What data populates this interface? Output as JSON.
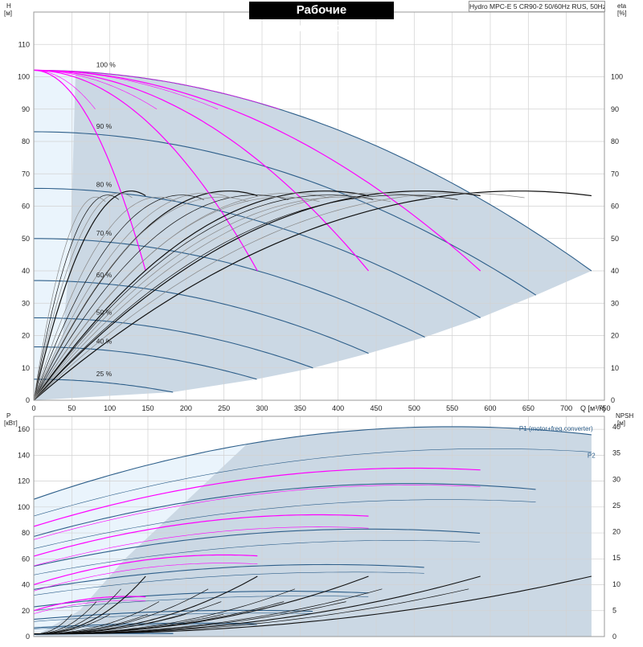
{
  "title": "Рабочие характеристики",
  "subtitle": "Hydro MPC-E 5 CR90-2 50/60Hz RUS, 50Hz",
  "colors": {
    "grid": "#d2d2d2",
    "frame": "#9a9a9a",
    "area_dark": "#cbd8e4",
    "area_light": "#eaf4fc",
    "curve_blue": "#2e5f8a",
    "curve_pink": "#ff00ff",
    "curve_black": "#111111",
    "curve_grey": "#888888"
  },
  "chart_data": [
    {
      "type": "line",
      "name": "head",
      "ylabel_left": [
        "H",
        "[м]"
      ],
      "ylabel_right": [
        "eta",
        "[%]"
      ],
      "xlabel": "Q [м³/ч]",
      "xlim": [
        0,
        750
      ],
      "ylim": [
        0,
        120
      ],
      "x_ticks": [
        0,
        50,
        100,
        150,
        200,
        250,
        300,
        350,
        400,
        450,
        500,
        550,
        600,
        650,
        700,
        750
      ],
      "y_ticks": [
        0,
        10,
        20,
        30,
        40,
        50,
        60,
        70,
        80,
        90,
        100,
        110
      ],
      "right_ticks": [
        0,
        10,
        20,
        30,
        40,
        50,
        60,
        70,
        80,
        90,
        100
      ],
      "speed_labels": [
        {
          "text": "100 %",
          "q": 42,
          "h": 102
        },
        {
          "text": "90 %",
          "q": 42,
          "h": 83
        },
        {
          "text": "80 %",
          "q": 42,
          "h": 65
        },
        {
          "text": "70 %",
          "q": 42,
          "h": 50
        },
        {
          "text": "60 %",
          "q": 42,
          "h": 37
        },
        {
          "text": "50 %",
          "q": 42,
          "h": 25.5
        },
        {
          "text": "40 %",
          "q": 42,
          "h": 16.5
        },
        {
          "text": "25 %",
          "q": 42,
          "h": 6.5
        }
      ],
      "qh_curves": [
        {
          "speed": "100 %",
          "h0": 102,
          "qmax": 733,
          "hend": 40
        },
        {
          "speed": "90 %",
          "h0": 83,
          "qmax": 660,
          "hend": 32.5
        },
        {
          "speed": "80 %",
          "h0": 65.5,
          "qmax": 587,
          "hend": 25.5
        },
        {
          "speed": "70 %",
          "h0": 50,
          "qmax": 514,
          "hend": 19.5
        },
        {
          "speed": "60 %",
          "h0": 37,
          "qmax": 440,
          "hend": 14.5
        },
        {
          "speed": "50 %",
          "h0": 25.5,
          "qmax": 367,
          "hend": 10
        },
        {
          "speed": "40 %",
          "h0": 16.5,
          "qmax": 293,
          "hend": 6.5
        },
        {
          "speed": "25 %",
          "h0": 6.5,
          "qmax": 183,
          "hend": 2.5
        }
      ],
      "pump_curves": [
        {
          "h0": 102,
          "qmax": 147,
          "hend": 40
        },
        {
          "h0": 102,
          "qmax": 294,
          "hend": 40
        },
        {
          "h0": 102,
          "qmax": 440,
          "hend": 40
        },
        {
          "h0": 102,
          "qmax": 587,
          "hend": 40
        }
      ],
      "efficiency_curves": [
        {
          "qmax": 147,
          "peak": 66
        },
        {
          "qmax": 294,
          "peak": 66
        },
        {
          "qmax": 440,
          "peak": 66
        },
        {
          "qmax": 587,
          "peak": 66
        },
        {
          "qmax": 733,
          "peak": 66
        }
      ]
    },
    {
      "type": "line",
      "name": "power",
      "ylabel_left": [
        "P",
        "[кВт]"
      ],
      "ylabel_right": [
        "NPSH",
        "[м]"
      ],
      "xlim": [
        0,
        750
      ],
      "ylim": [
        0,
        170
      ],
      "y_ticks": [
        0,
        20,
        40,
        60,
        80,
        100,
        120,
        140,
        160
      ],
      "right_ticks": [
        0,
        5,
        10,
        15,
        20,
        25,
        30,
        35,
        40
      ],
      "series_labels": [
        "P1 (motor+freq.converter)",
        "P2"
      ],
      "p1_max": {
        "p0": 106,
        "qpeak": 550,
        "ppeak": 162,
        "qmax": 733,
        "pend": 153
      },
      "p2_max": {
        "p0": 93,
        "qpeak": 600,
        "ppeak": 145,
        "qmax": 733,
        "pend": 140
      },
      "speed_scale": [
        1.0,
        0.9,
        0.8,
        0.7,
        0.6,
        0.5,
        0.4,
        0.25
      ],
      "pink_stages": [
        {
          "p0": 85,
          "qmax": 587,
          "ppeak": 130
        },
        {
          "p0": 62,
          "qmax": 440,
          "ppeak": 94
        },
        {
          "p0": 40,
          "qmax": 294,
          "ppeak": 63
        },
        {
          "p0": 20,
          "qmax": 147,
          "ppeak": 31
        }
      ],
      "npsh_curves": [
        {
          "qmax": 147,
          "npsh_end": 11
        },
        {
          "qmax": 294,
          "npsh_end": 11
        },
        {
          "qmax": 440,
          "npsh_end": 11
        },
        {
          "qmax": 587,
          "npsh_end": 11
        },
        {
          "qmax": 733,
          "npsh_end": 11
        }
      ]
    }
  ]
}
